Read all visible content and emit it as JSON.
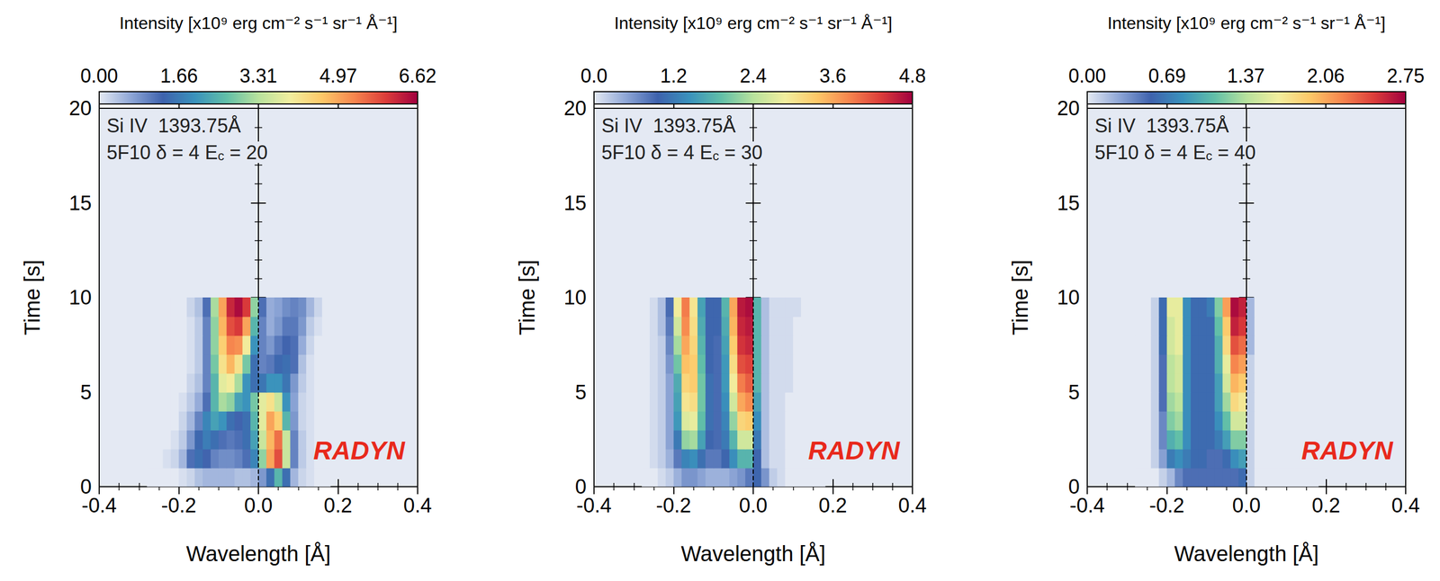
{
  "chart_data": [
    {
      "type": "heatmap",
      "annotations": [
        "Si IV  1393.75Å",
        "5F10 δ = 4 Ec = 20"
      ],
      "model_label": "RADYN",
      "x_label": "Wavelength [Å]",
      "y_label": "Time [s]",
      "xlim": [
        -0.4,
        0.4
      ],
      "xticks": [
        -0.4,
        -0.2,
        {
          "value": 0,
          "label": "0.0"
        },
        0.2,
        0.4
      ],
      "ylim": [
        0,
        20
      ],
      "yticks": [
        0,
        5,
        10,
        15,
        20
      ],
      "rest_wavelength": 0,
      "colorbar": {
        "title": "Intensity [x10⁹ erg cm⁻² s⁻¹ sr⁻¹ Å⁻¹]",
        "range": [
          0,
          6.62
        ],
        "ticks": [
          {
            "value": 0,
            "label": "0.00"
          },
          1.66,
          3.31,
          4.97,
          6.62
        ]
      },
      "cells": {
        "x": [
          -0.27,
          -0.25,
          -0.23,
          -0.21,
          -0.19,
          -0.17,
          -0.15,
          -0.13,
          -0.11,
          -0.09,
          -0.07,
          -0.05,
          -0.03,
          -0.01,
          0.01,
          0.03,
          0.05,
          0.07,
          0.09,
          0.11,
          0.13,
          0.15,
          0.17
        ],
        "y": [
          0.5,
          1.5,
          2.5,
          3.5,
          4.5,
          5.5,
          6.5,
          7.5,
          8.5,
          9.5
        ],
        "values": [
          [
            0,
            0,
            0,
            0,
            0.1,
            0.2,
            0.4,
            0.5,
            0.5,
            0.5,
            0.5,
            0.4,
            0.4,
            0.5,
            0.8,
            1.5,
            2.5,
            1.5,
            0.5,
            0.2,
            0.1,
            0,
            0
          ],
          [
            0,
            0,
            0.1,
            0.2,
            0.5,
            1.2,
            1.5,
            1.3,
            1.0,
            0.9,
            0.9,
            1.0,
            1.2,
            1.8,
            3.0,
            5.0,
            5.8,
            3.5,
            1.0,
            0.3,
            0.1,
            0,
            0
          ],
          [
            0,
            0,
            0,
            0.1,
            0.3,
            0.8,
            1.4,
            1.7,
            1.5,
            1.2,
            1.1,
            1.2,
            1.5,
            2.2,
            3.5,
            4.8,
            5.5,
            3.5,
            1.0,
            0.3,
            0.1,
            0,
            0
          ],
          [
            0,
            0,
            0,
            0,
            0.2,
            0.5,
            1.0,
            1.8,
            2.2,
            2.0,
            1.5,
            1.3,
            1.5,
            2.5,
            3.8,
            5.0,
            4.5,
            2.5,
            0.8,
            0.2,
            0.1,
            0,
            0
          ],
          [
            0,
            0,
            0,
            0,
            0.1,
            0.3,
            0.6,
            1.2,
            2.5,
            3.2,
            3.0,
            2.2,
            2.0,
            2.8,
            3.8,
            4.2,
            3.5,
            2.0,
            0.7,
            0.2,
            0.1,
            0,
            0
          ],
          [
            0,
            0,
            0,
            0,
            0,
            0.2,
            0.4,
            1.0,
            2.5,
            3.8,
            4.0,
            3.2,
            2.0,
            1.5,
            1.6,
            2.0,
            2.0,
            1.6,
            0.8,
            0.3,
            0.1,
            0,
            0
          ],
          [
            0,
            0,
            0,
            0,
            0,
            0.1,
            0.3,
            1.0,
            2.8,
            4.2,
            4.8,
            4.2,
            2.8,
            1.5,
            1.0,
            1.1,
            1.4,
            1.5,
            1.2,
            0.4,
            0.1,
            0,
            0
          ],
          [
            0,
            0,
            0,
            0,
            0,
            0.1,
            0.3,
            1.0,
            3.0,
            4.5,
            5.3,
            5.2,
            4.0,
            2.0,
            1.0,
            0.8,
            1.1,
            1.3,
            1.2,
            0.6,
            0.2,
            0,
            0
          ],
          [
            0,
            0,
            0,
            0,
            0,
            0.1,
            0.3,
            1.0,
            3.0,
            4.8,
            5.8,
            6.0,
            5.0,
            2.5,
            1.0,
            0.6,
            0.8,
            1.1,
            1.1,
            0.8,
            0.3,
            0.1,
            0
          ],
          [
            0,
            0,
            0,
            0,
            0,
            0.2,
            0.4,
            1.2,
            3.2,
            5.0,
            6.2,
            6.5,
            6.0,
            3.0,
            1.2,
            0.6,
            0.7,
            0.9,
            1.0,
            0.9,
            0.5,
            0.2,
            0
          ]
        ]
      }
    },
    {
      "type": "heatmap",
      "annotations": [
        "Si IV  1393.75Å",
        "5F10 δ = 4 Ec = 30"
      ],
      "model_label": "RADYN",
      "x_label": "Wavelength [Å]",
      "y_label": "Time [s]",
      "xlim": [
        -0.4,
        0.4
      ],
      "xticks": [
        -0.4,
        -0.2,
        {
          "value": 0,
          "label": "0.0"
        },
        0.2,
        0.4
      ],
      "ylim": [
        0,
        20
      ],
      "yticks": [
        0,
        5,
        10,
        15,
        20
      ],
      "rest_wavelength": 0,
      "colorbar": {
        "title": "Intensity [x10⁹ erg cm⁻² s⁻¹ sr⁻¹ Å⁻¹]",
        "range": [
          0,
          4.8
        ],
        "ticks": [
          {
            "value": 0,
            "label": "0.0"
          },
          1.2,
          2.4,
          3.6,
          4.8
        ]
      },
      "cells": {
        "x": [
          -0.27,
          -0.25,
          -0.23,
          -0.21,
          -0.19,
          -0.17,
          -0.15,
          -0.13,
          -0.11,
          -0.09,
          -0.07,
          -0.05,
          -0.03,
          -0.01,
          0.01,
          0.03,
          0.05,
          0.07,
          0.09,
          0.11,
          0.13,
          0.15,
          0.17
        ],
        "y": [
          0.5,
          1.5,
          2.5,
          3.5,
          4.5,
          5.5,
          6.5,
          7.5,
          8.5,
          9.5
        ],
        "values": [
          [
            0,
            0,
            0.1,
            0.2,
            0.4,
            0.6,
            0.6,
            0.5,
            0.4,
            0.4,
            0.4,
            0.5,
            0.6,
            0.8,
            1.0,
            0.6,
            0.2,
            0.1,
            0,
            0,
            0,
            0,
            0
          ],
          [
            0,
            0.1,
            0.2,
            0.4,
            0.8,
            1.3,
            1.4,
            1.1,
            0.8,
            0.8,
            1.0,
            1.4,
            1.8,
            1.8,
            1.0,
            0.3,
            0.1,
            0.1,
            0,
            0,
            0,
            0,
            0
          ],
          [
            0,
            0.1,
            0.2,
            0.5,
            1.2,
            2.2,
            2.3,
            1.6,
            1.0,
            0.9,
            1.2,
            1.8,
            2.6,
            2.6,
            1.2,
            0.3,
            0.1,
            0.1,
            0,
            0,
            0,
            0,
            0
          ],
          [
            0,
            0.1,
            0.2,
            0.5,
            1.5,
            2.7,
            2.8,
            1.9,
            1.1,
            0.9,
            1.3,
            2.2,
            3.2,
            3.3,
            1.4,
            0.3,
            0.1,
            0.1,
            0,
            0,
            0,
            0,
            0
          ],
          [
            0,
            0.1,
            0.2,
            0.5,
            1.6,
            3.0,
            3.1,
            2.0,
            1.1,
            0.9,
            1.4,
            2.6,
            3.6,
            3.8,
            1.6,
            0.3,
            0.1,
            0.1,
            0,
            0,
            0,
            0,
            0
          ],
          [
            0,
            0.1,
            0.2,
            0.5,
            1.7,
            3.2,
            3.3,
            2.0,
            1.1,
            0.9,
            1.5,
            2.9,
            3.9,
            4.1,
            1.8,
            0.3,
            0.1,
            0.1,
            0.1,
            0,
            0,
            0,
            0
          ],
          [
            0,
            0.1,
            0.2,
            0.6,
            2.0,
            3.4,
            3.3,
            1.9,
            1.0,
            0.9,
            1.5,
            3.1,
            4.2,
            4.3,
            1.8,
            0.3,
            0.1,
            0.1,
            0.1,
            0,
            0,
            0,
            0
          ],
          [
            0,
            0.1,
            0.2,
            0.7,
            2.3,
            3.6,
            3.2,
            1.8,
            1.0,
            0.9,
            1.6,
            3.3,
            4.4,
            4.5,
            1.8,
            0.3,
            0.1,
            0.1,
            0.1,
            0,
            0,
            0,
            0
          ],
          [
            0,
            0.1,
            0.3,
            0.8,
            2.6,
            3.8,
            3.1,
            1.7,
            1.0,
            1.0,
            1.7,
            3.5,
            4.5,
            4.6,
            1.8,
            0.3,
            0.1,
            0.1,
            0.1,
            0,
            0,
            0,
            0
          ],
          [
            0,
            0.1,
            0.3,
            0.9,
            2.9,
            3.9,
            3.0,
            1.6,
            1.0,
            1.0,
            1.8,
            3.6,
            4.6,
            4.7,
            1.8,
            0.3,
            0.1,
            0.1,
            0.1,
            0.1,
            0,
            0,
            0
          ]
        ]
      }
    },
    {
      "type": "heatmap",
      "annotations": [
        "Si IV  1393.75Å",
        "5F10 δ = 4 Ec = 40"
      ],
      "model_label": "RADYN",
      "x_label": "Wavelength [Å]",
      "y_label": "Time [s]",
      "xlim": [
        -0.4,
        0.4
      ],
      "xticks": [
        -0.4,
        -0.2,
        {
          "value": 0,
          "label": "0.0"
        },
        0.2,
        0.4
      ],
      "ylim": [
        0,
        20
      ],
      "yticks": [
        0,
        5,
        10,
        15,
        20
      ],
      "rest_wavelength": 0,
      "colorbar": {
        "title": "Intensity [x10⁹ erg cm⁻² s⁻¹ sr⁻¹ Å⁻¹]",
        "range": [
          0,
          2.75
        ],
        "ticks": [
          {
            "value": 0,
            "label": "0.00"
          },
          0.69,
          1.37,
          2.06,
          2.75
        ]
      },
      "cells": {
        "x": [
          -0.27,
          -0.25,
          -0.23,
          -0.21,
          -0.19,
          -0.17,
          -0.15,
          -0.13,
          -0.11,
          -0.09,
          -0.07,
          -0.05,
          -0.03,
          -0.01,
          0.01,
          0.03,
          0.05,
          0.07,
          0.09,
          0.11,
          0.13,
          0.15,
          0.17
        ],
        "y": [
          0.5,
          1.5,
          2.5,
          3.5,
          4.5,
          5.5,
          6.5,
          7.5,
          8.5,
          9.5
        ],
        "values": [
          [
            0,
            0,
            0,
            0.1,
            0.2,
            0.4,
            0.5,
            0.5,
            0.5,
            0.5,
            0.5,
            0.5,
            0.5,
            0.6,
            0.1,
            0,
            0,
            0,
            0,
            0,
            0,
            0,
            0
          ],
          [
            0,
            0,
            0.1,
            0.3,
            0.7,
            0.8,
            0.7,
            0.6,
            0.6,
            0.5,
            0.5,
            0.6,
            0.8,
            0.9,
            0.1,
            0,
            0,
            0,
            0,
            0,
            0,
            0,
            0
          ],
          [
            0,
            0,
            0.1,
            0.4,
            1.0,
            1.1,
            0.8,
            0.6,
            0.6,
            0.6,
            0.7,
            0.9,
            1.2,
            1.2,
            0.1,
            0,
            0,
            0,
            0,
            0,
            0,
            0,
            0
          ],
          [
            0,
            0,
            0.1,
            0.4,
            1.2,
            1.3,
            0.8,
            0.6,
            0.6,
            0.6,
            0.8,
            1.1,
            1.5,
            1.5,
            0.1,
            0,
            0,
            0,
            0,
            0,
            0,
            0,
            0
          ],
          [
            0,
            0,
            0.1,
            0.5,
            1.3,
            1.4,
            0.8,
            0.6,
            0.6,
            0.6,
            0.9,
            1.3,
            1.8,
            1.7,
            0.1,
            0,
            0,
            0,
            0,
            0,
            0,
            0,
            0
          ],
          [
            0,
            0,
            0.1,
            0.5,
            1.4,
            1.5,
            0.8,
            0.6,
            0.6,
            0.6,
            0.9,
            1.5,
            2.0,
            1.9,
            0.1,
            0,
            0,
            0,
            0,
            0,
            0,
            0,
            0
          ],
          [
            0,
            0,
            0.1,
            0.5,
            1.4,
            1.5,
            0.8,
            0.6,
            0.6,
            0.6,
            1.0,
            1.6,
            2.2,
            2.1,
            0.1,
            0,
            0,
            0,
            0,
            0,
            0,
            0,
            0
          ],
          [
            0,
            0,
            0.1,
            0.6,
            1.5,
            1.6,
            0.8,
            0.6,
            0.6,
            0.6,
            1.0,
            1.8,
            2.4,
            2.3,
            0.2,
            0,
            0,
            0,
            0,
            0,
            0,
            0,
            0
          ],
          [
            0,
            0,
            0.1,
            0.6,
            1.5,
            1.6,
            0.8,
            0.6,
            0.6,
            0.6,
            1.1,
            1.9,
            2.6,
            2.5,
            0.2,
            0,
            0,
            0,
            0,
            0,
            0,
            0,
            0
          ],
          [
            0,
            0,
            0.1,
            0.6,
            1.6,
            1.6,
            0.8,
            0.6,
            0.6,
            0.7,
            1.2,
            2.1,
            2.7,
            2.6,
            0.2,
            0,
            0,
            0,
            0,
            0,
            0,
            0,
            0
          ]
        ]
      }
    }
  ]
}
